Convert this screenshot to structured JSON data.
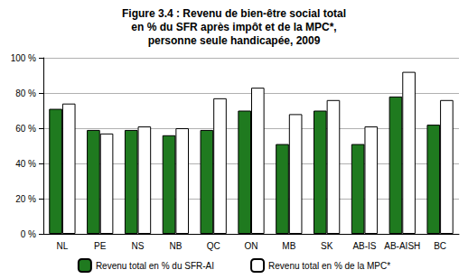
{
  "chart_data": {
    "type": "bar",
    "title": "Figure 3.4 : Revenu de bien-être social total\nen % du SFR après impôt et de la MPC*,\npersonne seule handicapée, 2009",
    "categories": [
      "NL",
      "PE",
      "NS",
      "NB",
      "QC",
      "ON",
      "MB",
      "SK",
      "AB-IS",
      "AB-AISH",
      "BC"
    ],
    "series": [
      {
        "name": "Revenu total en % du SFR-AI",
        "color": "#1f7a1f",
        "values": [
          71,
          59,
          59,
          56,
          59,
          70,
          51,
          70,
          51,
          78,
          62
        ]
      },
      {
        "name": "Revenu total en % de la MPC*",
        "color": "#ffffff",
        "values": [
          74,
          57,
          61,
          60,
          77,
          83,
          68,
          76,
          61,
          92,
          76
        ]
      }
    ],
    "ylim": [
      0,
      100
    ],
    "yticks": [
      {
        "value": 0,
        "label": "0 %"
      },
      {
        "value": 20,
        "label": "20 %"
      },
      {
        "value": 40,
        "label": "40 %"
      },
      {
        "value": 60,
        "label": "60 %"
      },
      {
        "value": 80,
        "label": "80 %"
      },
      {
        "value": 100,
        "label": "100 %"
      }
    ],
    "grid": true,
    "legend": "bottom"
  }
}
